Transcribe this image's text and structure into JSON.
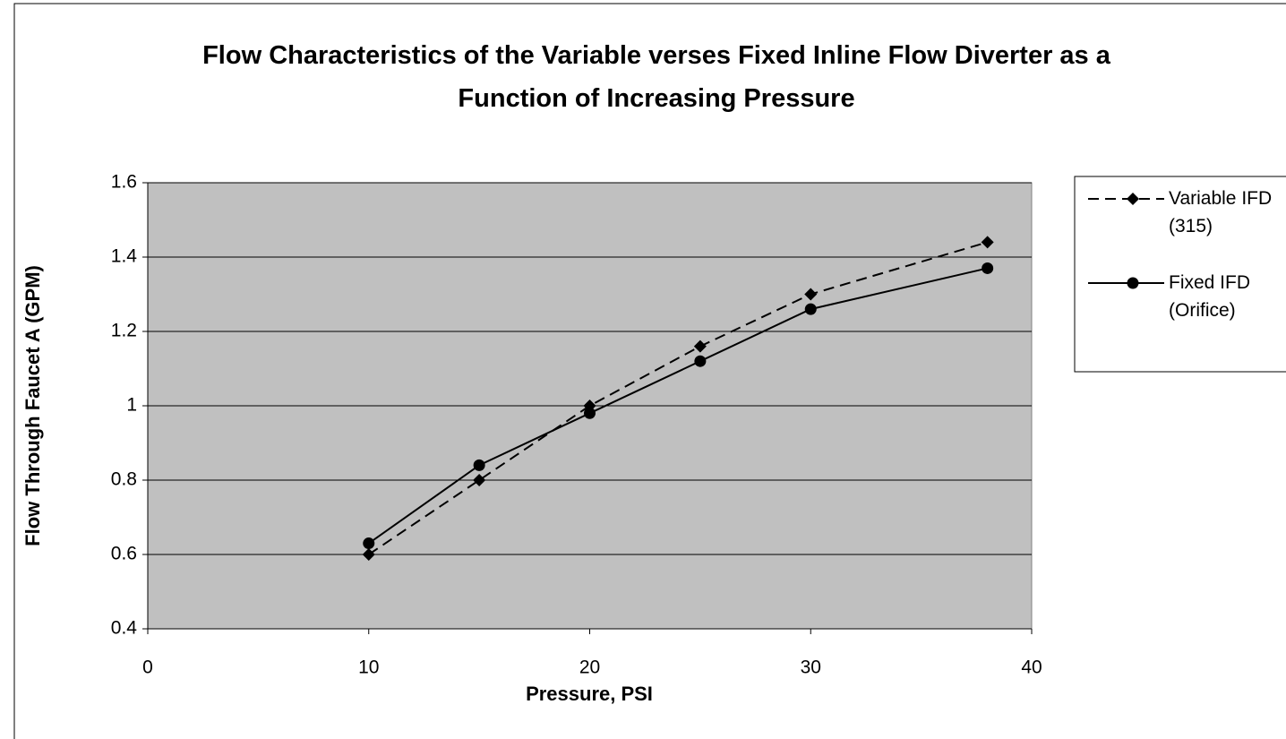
{
  "chart_data": {
    "type": "line",
    "title": "Flow Characteristics of the Variable verses Fixed Inline Flow Diverter as a Function of Increasing Pressure",
    "x_label": "Pressure, PSI",
    "y_label": "Flow Through Faucet A (GPM)",
    "x": [
      10,
      15,
      20,
      25,
      30,
      38
    ],
    "series": [
      {
        "name": "Variable IFD (315)",
        "color": "#000000",
        "dash": true,
        "marker": "diamond",
        "values": [
          0.6,
          0.8,
          1.0,
          1.16,
          1.3,
          1.44
        ]
      },
      {
        "name": "Fixed IFD (Orifice)",
        "color": "#000000",
        "dash": false,
        "marker": "circle",
        "values": [
          0.63,
          0.84,
          0.98,
          1.12,
          1.26,
          1.37
        ]
      }
    ],
    "xlim": [
      0,
      40
    ],
    "xticks": [
      0,
      10,
      20,
      30,
      40
    ],
    "ylim": [
      0.4,
      1.6
    ],
    "yticks": [
      0.4,
      0.6,
      0.8,
      1,
      1.2,
      1.4,
      1.6
    ],
    "grid": true,
    "legend": "right",
    "plot_background": "#c0c0c0"
  }
}
